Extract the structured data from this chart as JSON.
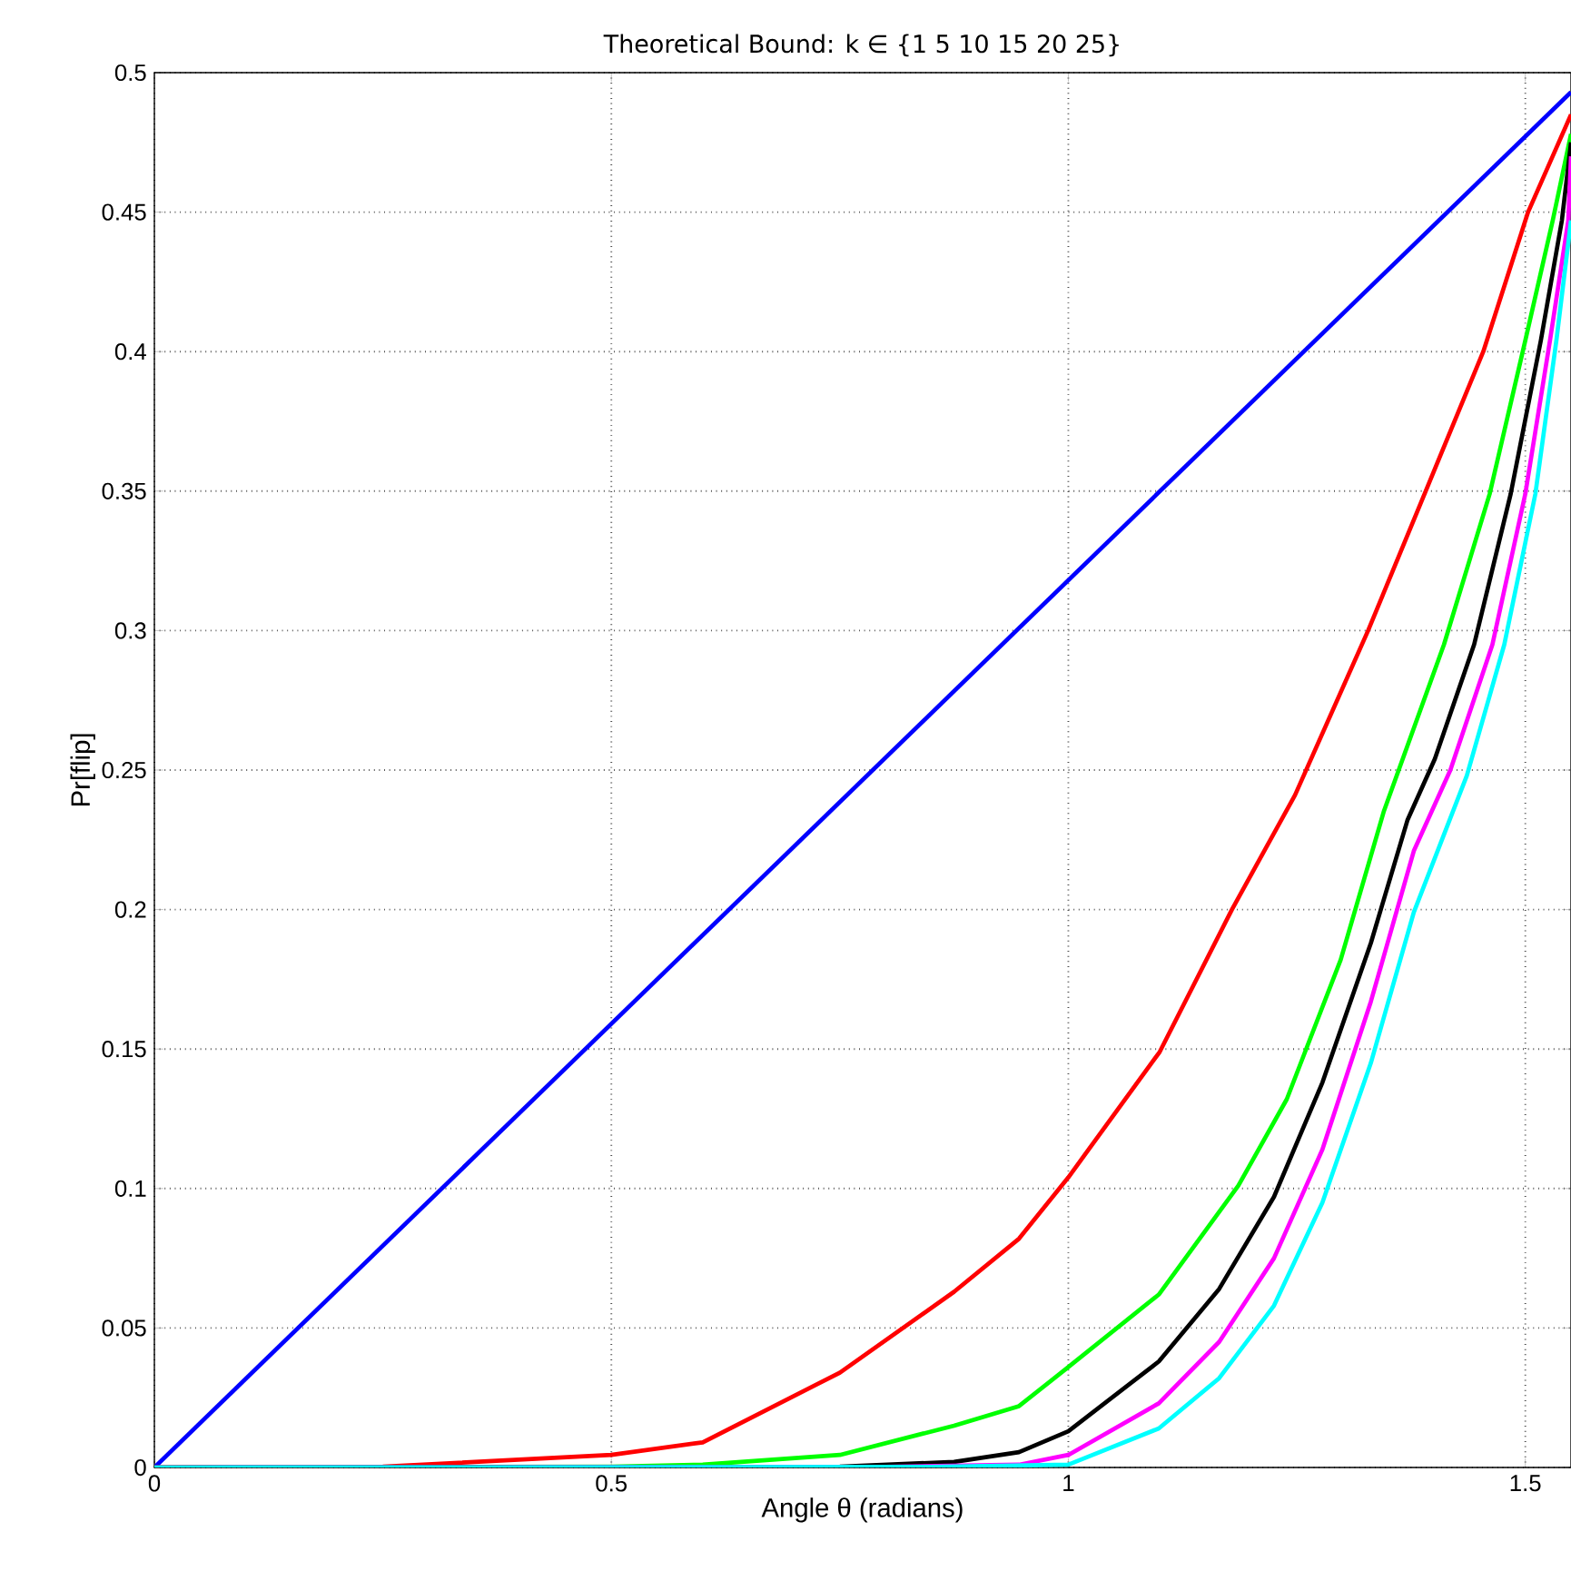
{
  "chart_data": {
    "type": "line",
    "title": "Theoretical Bound: k ∈ {1   5  10  15  20  25}",
    "xlabel": "Angle θ (radians)",
    "ylabel": "Pr[flip]",
    "xlim": [
      0,
      1.55
    ],
    "ylim": [
      0,
      0.5
    ],
    "xticks": [
      0,
      0.5,
      1,
      1.5
    ],
    "yticks": [
      0,
      0.05,
      0.1,
      0.15,
      0.2,
      0.25,
      0.3,
      0.35,
      0.4,
      0.45,
      0.5
    ],
    "grid": true,
    "line_style": "solid",
    "marker": "none",
    "series": [
      {
        "color": "#0000ff",
        "x": [
          0,
          1.55
        ],
        "values": [
          0,
          0.493
        ]
      },
      {
        "color": "#ff0000",
        "x": [
          0,
          0.25,
          0.5,
          0.6,
          0.75,
          0.875,
          0.946,
          1.0,
          1.1,
          1.179,
          1.248,
          1.328,
          1.391,
          1.454,
          1.503,
          1.55
        ],
        "values": [
          0,
          0.0003,
          0.0045,
          0.009,
          0.034,
          0.063,
          0.082,
          0.104,
          0.149,
          0.2,
          0.241,
          0.3,
          0.35,
          0.4,
          0.45,
          0.485
        ]
      },
      {
        "color": "#00ff00",
        "x": [
          0,
          0.5,
          0.6,
          0.75,
          0.875,
          0.946,
          1.0,
          1.099,
          1.186,
          1.239,
          1.298,
          1.345,
          1.411,
          1.461,
          1.5,
          1.53,
          1.55
        ],
        "values": [
          0,
          0.0003,
          0.001,
          0.0045,
          0.015,
          0.022,
          0.036,
          0.062,
          0.101,
          0.132,
          0.182,
          0.235,
          0.295,
          0.349,
          0.404,
          0.447,
          0.478
        ]
      },
      {
        "color": "#000000",
        "x": [
          0,
          0.75,
          0.875,
          0.946,
          1.0,
          1.099,
          1.165,
          1.225,
          1.278,
          1.331,
          1.371,
          1.401,
          1.444,
          1.484,
          1.517,
          1.54,
          1.55
        ],
        "values": [
          0,
          0.0003,
          0.002,
          0.0055,
          0.013,
          0.038,
          0.064,
          0.097,
          0.138,
          0.188,
          0.232,
          0.254,
          0.295,
          0.349,
          0.404,
          0.447,
          0.475
        ]
      },
      {
        "color": "#ff00ff",
        "x": [
          0,
          0.8,
          0.946,
          1.0,
          1.099,
          1.165,
          1.225,
          1.278,
          1.331,
          1.378,
          1.418,
          1.464,
          1.5,
          1.527,
          1.547,
          1.55
        ],
        "values": [
          0,
          0.0002,
          0.001,
          0.0045,
          0.023,
          0.045,
          0.075,
          0.114,
          0.167,
          0.221,
          0.25,
          0.295,
          0.349,
          0.404,
          0.447,
          0.47
        ]
      },
      {
        "color": "#00ffff",
        "x": [
          0,
          0.85,
          1.0,
          1.099,
          1.165,
          1.225,
          1.278,
          1.331,
          1.378,
          1.436,
          1.477,
          1.511,
          1.534,
          1.55
        ],
        "values": [
          0,
          0.0002,
          0.001,
          0.014,
          0.032,
          0.058,
          0.095,
          0.145,
          0.199,
          0.248,
          0.295,
          0.349,
          0.404,
          0.447
        ]
      }
    ]
  }
}
